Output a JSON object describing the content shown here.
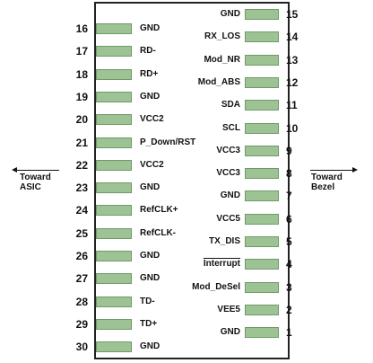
{
  "left_pins": [
    {
      "num": "16",
      "label": "GND"
    },
    {
      "num": "17",
      "label": "RD-"
    },
    {
      "num": "18",
      "label": "RD+"
    },
    {
      "num": "19",
      "label": "GND"
    },
    {
      "num": "20",
      "label": "VCC2"
    },
    {
      "num": "21",
      "label": "P_Down/RST"
    },
    {
      "num": "22",
      "label": "VCC2"
    },
    {
      "num": "23",
      "label": "GND"
    },
    {
      "num": "24",
      "label": "RefCLK+"
    },
    {
      "num": "25",
      "label": "RefCLK-"
    },
    {
      "num": "26",
      "label": "GND"
    },
    {
      "num": "27",
      "label": "GND"
    },
    {
      "num": "28",
      "label": "TD-"
    },
    {
      "num": "29",
      "label": "TD+"
    },
    {
      "num": "30",
      "label": "GND"
    }
  ],
  "right_pins": [
    {
      "num": "15",
      "label": "GND"
    },
    {
      "num": "14",
      "label": "RX_LOS"
    },
    {
      "num": "13",
      "label": "Mod_NR"
    },
    {
      "num": "12",
      "label": "Mod_ABS"
    },
    {
      "num": "11",
      "label": "SDA"
    },
    {
      "num": "10",
      "label": "SCL"
    },
    {
      "num": "9",
      "label": "VCC3"
    },
    {
      "num": "8",
      "label": "VCC3"
    },
    {
      "num": "7",
      "label": "GND"
    },
    {
      "num": "6",
      "label": "VCC5"
    },
    {
      "num": "5",
      "label": "TX_DIS"
    },
    {
      "num": "4",
      "label": "Interrupt"
    },
    {
      "num": "3",
      "label": "Mod_DeSel"
    },
    {
      "num": "2",
      "label": "VEE5"
    },
    {
      "num": "1",
      "label": "GND"
    }
  ],
  "direction_left": {
    "line1": "Toward",
    "line2": "ASIC"
  },
  "direction_right": {
    "line1": "Toward",
    "line2": "Bezel"
  },
  "colors": {
    "pad_fill": "#9dc394",
    "pad_border": "#6f9a68",
    "outline": "#222222"
  }
}
